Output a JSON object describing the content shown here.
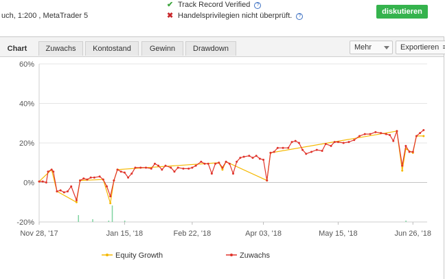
{
  "header": {
    "account_info": "uch, 1:200 , MetaTrader 5",
    "track_record": "Track Record Verified",
    "trading_privileges": "Handelsprivilegien nicht überprüft.",
    "help_glyph": "?",
    "discuss_label": "diskutieren"
  },
  "icons": {
    "verified": "check-icon",
    "not_verified": "cross-icon",
    "help": "help-icon",
    "dropdown": "chevron-down-icon",
    "export": "menu-icon"
  },
  "tabs": [
    {
      "label": "Chart",
      "active": true
    },
    {
      "label": "Zuwachs",
      "active": false
    },
    {
      "label": "Kontostand",
      "active": false
    },
    {
      "label": "Gewinn",
      "active": false
    },
    {
      "label": "Drawdown",
      "active": false
    }
  ],
  "toolbar": {
    "more_label": "Mehr",
    "export_label": "Exportieren"
  },
  "colors": {
    "discuss_button": "#35b34d",
    "growth": "#e0332a",
    "equity": "#f5b800",
    "volume": "#7fd3a0",
    "check": "#3fa63f",
    "cross": "#c8282c"
  },
  "chart_data": {
    "type": "line",
    "ylim": [
      -20,
      60
    ],
    "y_ticks": [
      "60%",
      "40%",
      "20%",
      "0%",
      "-20%"
    ],
    "x_range": [
      "2017-11-28",
      "2018-07-04"
    ],
    "x_tick_labels": [
      "Nov 28, '17",
      "Jan 15, '18",
      "Feb 22, '18",
      "Apr 03, '18",
      "May 15, '18",
      "Jun 26, '18"
    ],
    "x_tick_dates": [
      "2017-11-28",
      "2018-01-15",
      "2018-02-22",
      "2018-04-03",
      "2018-05-15",
      "2018-06-26"
    ],
    "grid": true,
    "legend_position": "bottom",
    "series": [
      {
        "name": "Zuwachs",
        "color": "#e0332a",
        "points": [
          [
            "2017-11-28",
            0.5
          ],
          [
            "2017-11-30",
            0.5
          ],
          [
            "2017-12-02",
            0
          ],
          [
            "2017-12-03",
            5.5
          ],
          [
            "2017-12-05",
            6.5
          ],
          [
            "2017-12-06",
            5.5
          ],
          [
            "2017-12-08",
            -4.5
          ],
          [
            "2017-12-10",
            -4
          ],
          [
            "2017-12-12",
            -5
          ],
          [
            "2017-12-14",
            -4.5
          ],
          [
            "2017-12-16",
            -2
          ],
          [
            "2017-12-19",
            -9
          ],
          [
            "2017-12-21",
            1
          ],
          [
            "2017-12-23",
            2
          ],
          [
            "2017-12-25",
            1.5
          ],
          [
            "2017-12-27",
            2.5
          ],
          [
            "2017-12-29",
            2.5
          ],
          [
            "2018-01-01",
            3
          ],
          [
            "2018-01-03",
            1.5
          ],
          [
            "2018-01-05",
            -2
          ],
          [
            "2018-01-07",
            -7
          ],
          [
            "2018-01-09",
            1
          ],
          [
            "2018-01-11",
            6.5
          ],
          [
            "2018-01-13",
            5.5
          ],
          [
            "2018-01-15",
            5
          ],
          [
            "2018-01-17",
            2.5
          ],
          [
            "2018-01-19",
            4.5
          ],
          [
            "2018-01-21",
            7.5
          ],
          [
            "2018-01-24",
            7.5
          ],
          [
            "2018-01-27",
            7.5
          ],
          [
            "2018-01-30",
            7
          ],
          [
            "2018-02-01",
            9.5
          ],
          [
            "2018-02-03",
            8.5
          ],
          [
            "2018-02-05",
            6.5
          ],
          [
            "2018-02-07",
            8.5
          ],
          [
            "2018-02-10",
            7.5
          ],
          [
            "2018-02-12",
            5.5
          ],
          [
            "2018-02-14",
            7.5
          ],
          [
            "2018-02-17",
            7
          ],
          [
            "2018-02-20",
            7
          ],
          [
            "2018-02-22",
            7.5
          ],
          [
            "2018-02-24",
            8.5
          ],
          [
            "2018-02-27",
            10.5
          ],
          [
            "2018-03-01",
            9.5
          ],
          [
            "2018-03-03",
            9.5
          ],
          [
            "2018-03-05",
            4.5
          ],
          [
            "2018-03-07",
            9.5
          ],
          [
            "2018-03-09",
            10
          ],
          [
            "2018-03-11",
            7.5
          ],
          [
            "2018-03-13",
            10.5
          ],
          [
            "2018-03-15",
            9.5
          ],
          [
            "2018-03-17",
            4.5
          ],
          [
            "2018-03-19",
            10.5
          ],
          [
            "2018-03-21",
            12.5
          ],
          [
            "2018-03-23",
            13
          ],
          [
            "2018-03-26",
            13.5
          ],
          [
            "2018-03-28",
            12.5
          ],
          [
            "2018-03-30",
            13.5
          ],
          [
            "2018-04-01",
            12
          ],
          [
            "2018-04-03",
            11.5
          ],
          [
            "2018-04-05",
            1
          ],
          [
            "2018-04-07",
            15
          ],
          [
            "2018-04-09",
            15.5
          ],
          [
            "2018-04-11",
            17.5
          ],
          [
            "2018-04-14",
            17.5
          ],
          [
            "2018-04-17",
            17.5
          ],
          [
            "2018-04-19",
            20.5
          ],
          [
            "2018-04-21",
            21
          ],
          [
            "2018-04-23",
            20
          ],
          [
            "2018-04-25",
            16.5
          ],
          [
            "2018-04-27",
            14.5
          ],
          [
            "2018-04-30",
            15.5
          ],
          [
            "2018-05-03",
            16.5
          ],
          [
            "2018-05-06",
            16
          ],
          [
            "2018-05-08",
            19.5
          ],
          [
            "2018-05-11",
            18.5
          ],
          [
            "2018-05-13",
            20.5
          ],
          [
            "2018-05-15",
            20.5
          ],
          [
            "2018-05-18",
            20
          ],
          [
            "2018-05-21",
            20.5
          ],
          [
            "2018-05-24",
            21.5
          ],
          [
            "2018-05-27",
            23.5
          ],
          [
            "2018-05-30",
            24.5
          ],
          [
            "2018-06-02",
            24.5
          ],
          [
            "2018-06-05",
            25.5
          ],
          [
            "2018-06-08",
            25
          ],
          [
            "2018-06-11",
            24.5
          ],
          [
            "2018-06-13",
            24
          ],
          [
            "2018-06-15",
            21
          ],
          [
            "2018-06-17",
            26
          ],
          [
            "2018-06-20",
            8.5
          ],
          [
            "2018-06-22",
            18.5
          ],
          [
            "2018-06-24",
            15.5
          ],
          [
            "2018-06-26",
            15.5
          ],
          [
            "2018-06-28",
            23.5
          ],
          [
            "2018-06-30",
            25
          ],
          [
            "2018-07-02",
            26.5
          ]
        ]
      },
      {
        "name": "Equity Growth",
        "color": "#f5b800",
        "points": [
          [
            "2017-11-28",
            0.5
          ],
          [
            "2017-12-05",
            6.5
          ],
          [
            "2017-12-08",
            -4.5
          ],
          [
            "2017-12-19",
            -10
          ],
          [
            "2017-12-21",
            1
          ],
          [
            "2018-01-03",
            1.5
          ],
          [
            "2018-01-07",
            -10.5
          ],
          [
            "2018-01-09",
            1
          ],
          [
            "2018-01-11",
            6.5
          ],
          [
            "2018-03-09",
            10
          ],
          [
            "2018-03-11",
            6.5
          ],
          [
            "2018-03-13",
            10.5
          ],
          [
            "2018-04-05",
            1
          ],
          [
            "2018-04-07",
            15
          ],
          [
            "2018-06-17",
            26
          ],
          [
            "2018-06-20",
            6
          ],
          [
            "2018-06-22",
            17
          ],
          [
            "2018-06-26",
            15
          ],
          [
            "2018-06-28",
            23.5
          ],
          [
            "2018-07-02",
            23.5
          ]
        ]
      }
    ],
    "volume_bars": [
      [
        "2017-12-20",
        5
      ],
      [
        "2017-12-28",
        2
      ],
      [
        "2018-01-06",
        1
      ],
      [
        "2018-01-08",
        12
      ],
      [
        "2018-01-15",
        1
      ],
      [
        "2018-06-22",
        1
      ]
    ]
  }
}
